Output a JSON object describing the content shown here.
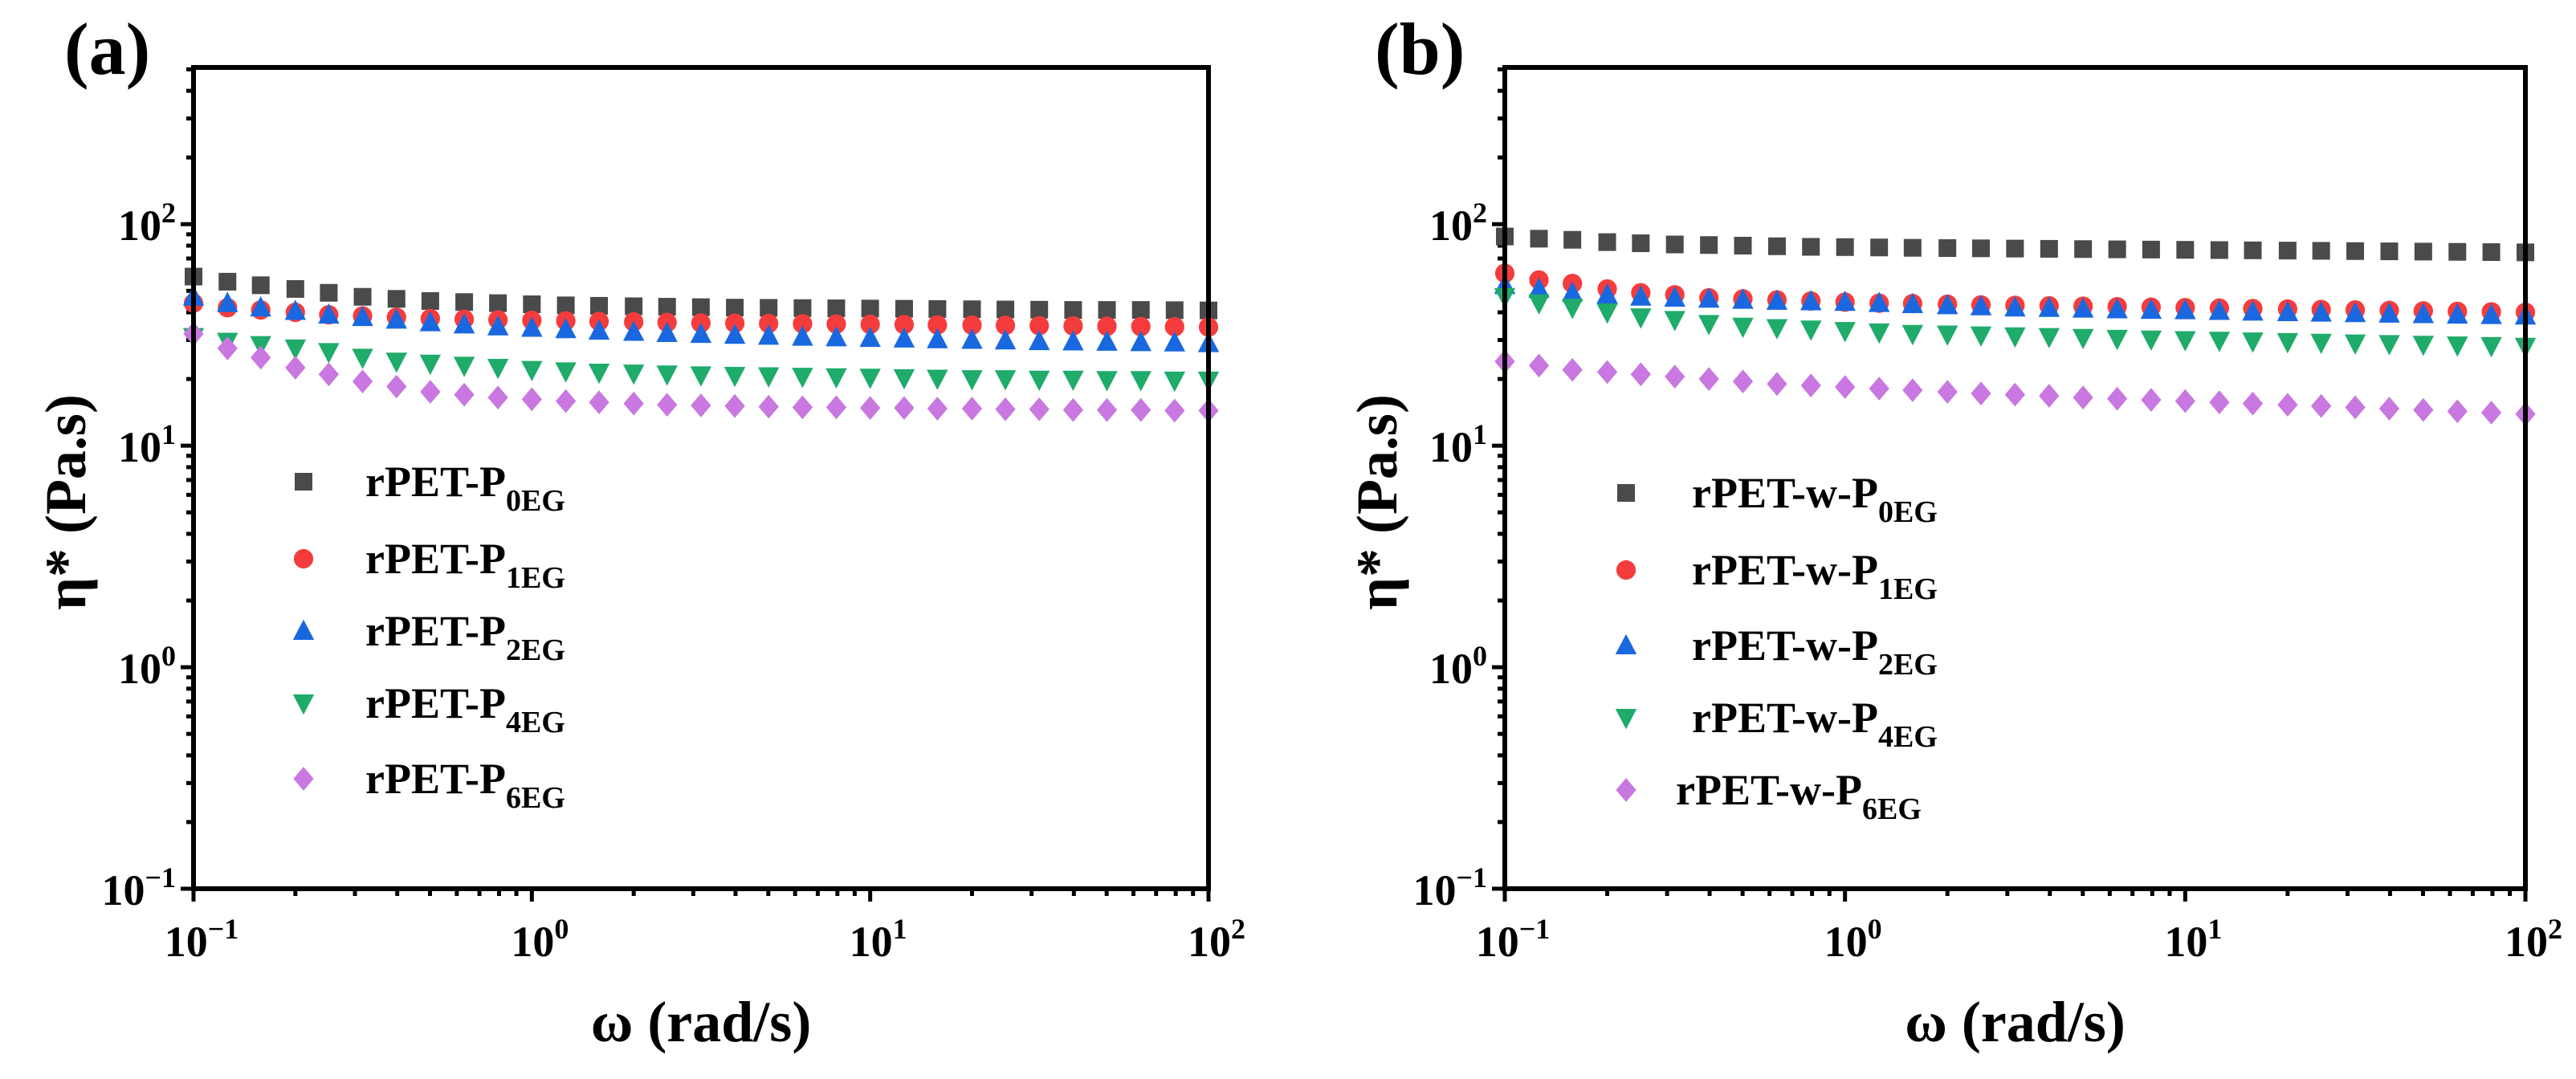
{
  "chart_data": [
    {
      "type": "scatter",
      "panel_label": "(a)",
      "xlabel": "ω (rad/s)",
      "ylabel": "η* (Pa.s)",
      "xscale": "log",
      "yscale": "log",
      "xlim": [
        0.1,
        100
      ],
      "ylim": [
        0.1,
        510
      ],
      "x_ticks": [
        {
          "value": 0.1,
          "base": "10",
          "exp": "−1"
        },
        {
          "value": 1,
          "base": "10",
          "exp": "0"
        },
        {
          "value": 10,
          "base": "10",
          "exp": "1"
        },
        {
          "value": 100,
          "base": "10",
          "exp": "2"
        }
      ],
      "y_ticks": [
        {
          "value": 0.1,
          "base": "10",
          "exp": "−1"
        },
        {
          "value": 1,
          "base": "10",
          "exp": "0"
        },
        {
          "value": 10,
          "base": "10",
          "exp": "1"
        },
        {
          "value": 100,
          "base": "10",
          "exp": "2"
        }
      ],
      "legend_placement": "center-left",
      "x": [
        0.1,
        0.126,
        0.158,
        0.2,
        0.251,
        0.316,
        0.398,
        0.501,
        0.631,
        0.794,
        1,
        1.26,
        1.58,
        2,
        2.51,
        3.16,
        3.98,
        5.01,
        6.31,
        7.94,
        10,
        12.6,
        15.8,
        20,
        25.1,
        31.6,
        39.8,
        50.1,
        63.1,
        79.4,
        100
      ],
      "series": [
        {
          "name": "rPET-P",
          "sub": "0EG",
          "marker": "square",
          "color": "#4a4a4a",
          "values": [
            58,
            55,
            53,
            51,
            49,
            47,
            46,
            45,
            44.5,
            44,
            43.5,
            43,
            42.8,
            42.6,
            42.4,
            42.2,
            42,
            41.9,
            41.8,
            41.7,
            41.6,
            41.5,
            41.4,
            41.3,
            41.2,
            41.1,
            41,
            41,
            41,
            40.9,
            40.8
          ]
        },
        {
          "name": "rPET-P",
          "sub": "1EG",
          "marker": "circle",
          "color": "#f53c3c",
          "values": [
            44,
            42,
            41,
            40,
            39,
            38.5,
            38,
            37.5,
            37.2,
            37,
            36.8,
            36.6,
            36.4,
            36.2,
            36,
            35.8,
            35.7,
            35.6,
            35.5,
            35.4,
            35.3,
            35.2,
            35.1,
            35,
            34.9,
            34.8,
            34.7,
            34.6,
            34.5,
            34.4,
            34.3
          ]
        },
        {
          "name": "rPET-P",
          "sub": "2EG",
          "marker": "triangle-up",
          "color": "#1a68e0",
          "values": [
            47,
            44,
            42,
            40.5,
            39,
            38,
            37,
            36,
            35.2,
            34.5,
            34,
            33.5,
            33,
            32.6,
            32.2,
            31.9,
            31.6,
            31.3,
            31,
            30.8,
            30.6,
            30.4,
            30.2,
            30,
            29.8,
            29.6,
            29.5,
            29.4,
            29.3,
            29.2,
            29
          ]
        },
        {
          "name": "rPET-P",
          "sub": "4EG",
          "marker": "triangle-down",
          "color": "#1fab6a",
          "values": [
            31,
            29.5,
            28.5,
            27.5,
            26.5,
            25,
            24,
            23.5,
            23,
            22.5,
            22,
            21.7,
            21.4,
            21.2,
            21,
            20.8,
            20.7,
            20.6,
            20.5,
            20.4,
            20.3,
            20.2,
            20.1,
            20,
            20,
            19.9,
            19.9,
            19.8,
            19.8,
            19.7,
            19.7
          ]
        },
        {
          "name": "rPET-P",
          "sub": "6EG",
          "marker": "diamond",
          "color": "#c878e0",
          "values": [
            32,
            27.5,
            25,
            22.5,
            21,
            19.5,
            18.5,
            17.5,
            17,
            16.5,
            16.2,
            15.9,
            15.7,
            15.5,
            15.3,
            15.2,
            15.1,
            15,
            14.9,
            14.9,
            14.8,
            14.8,
            14.7,
            14.7,
            14.6,
            14.6,
            14.5,
            14.5,
            14.5,
            14.4,
            14.4
          ]
        }
      ]
    },
    {
      "type": "scatter",
      "panel_label": "(b)",
      "xlabel": "ω (rad/s)",
      "ylabel": "η* (Pa.s)",
      "xscale": "log",
      "yscale": "log",
      "xlim": [
        0.1,
        100
      ],
      "ylim": [
        0.1,
        510
      ],
      "x_ticks": [
        {
          "value": 0.1,
          "base": "10",
          "exp": "−1"
        },
        {
          "value": 1,
          "base": "10",
          "exp": "0"
        },
        {
          "value": 10,
          "base": "10",
          "exp": "1"
        },
        {
          "value": 100,
          "base": "10",
          "exp": "2"
        }
      ],
      "y_ticks": [
        {
          "value": 0.1,
          "base": "10",
          "exp": "−1"
        },
        {
          "value": 1,
          "base": "10",
          "exp": "0"
        },
        {
          "value": 10,
          "base": "10",
          "exp": "1"
        },
        {
          "value": 100,
          "base": "10",
          "exp": "2"
        }
      ],
      "legend_placement": "center-left",
      "x": [
        0.1,
        0.126,
        0.158,
        0.2,
        0.251,
        0.316,
        0.398,
        0.501,
        0.631,
        0.794,
        1,
        1.26,
        1.58,
        2,
        2.51,
        3.16,
        3.98,
        5.01,
        6.31,
        7.94,
        10,
        12.6,
        15.8,
        20,
        25.1,
        31.6,
        39.8,
        50.1,
        63.1,
        79.4,
        100
      ],
      "series": [
        {
          "name": "rPET-w-P",
          "sub": "0EG",
          "marker": "square",
          "color": "#4a4a4a",
          "values": [
            88,
            86,
            85,
            83,
            82,
            81,
            80.5,
            80,
            79.5,
            79,
            78.8,
            78.5,
            78.2,
            78,
            77.8,
            77.6,
            77.4,
            77.2,
            77,
            76.8,
            76.6,
            76.4,
            76.2,
            76,
            75.8,
            75.6,
            75.4,
            75.2,
            75,
            74.8,
            74.6
          ]
        },
        {
          "name": "rPET-w-P",
          "sub": "1EG",
          "marker": "circle",
          "color": "#f53c3c",
          "values": [
            60,
            56,
            54,
            51,
            49,
            48,
            46.5,
            46,
            45.5,
            45,
            44.5,
            44,
            43.8,
            43.5,
            43.2,
            43,
            42.8,
            42.6,
            42.4,
            42.2,
            42,
            41.8,
            41.6,
            41.4,
            41.2,
            41,
            40.8,
            40.6,
            40.4,
            40.2,
            40
          ]
        },
        {
          "name": "rPET-w-P",
          "sub": "2EG",
          "marker": "triangle-up",
          "color": "#1a68e0",
          "values": [
            53,
            51,
            49,
            48,
            47,
            46.5,
            46,
            45.5,
            45,
            44.8,
            44.5,
            44,
            43.5,
            43,
            42.5,
            42,
            41.8,
            41.5,
            41.2,
            41,
            40.8,
            40.5,
            40.2,
            40,
            39.8,
            39.6,
            39.4,
            39.2,
            39,
            38.8,
            38.6
          ]
        },
        {
          "name": "rPET-w-P",
          "sub": "4EG",
          "marker": "triangle-down",
          "color": "#1fab6a",
          "values": [
            47,
            44,
            42,
            40,
            38,
            37,
            35.5,
            34.5,
            34,
            33.5,
            33,
            32.5,
            32,
            31.8,
            31.5,
            31.2,
            31,
            30.7,
            30.4,
            30.2,
            30,
            29.8,
            29.6,
            29.4,
            29.2,
            29,
            28.8,
            28.6,
            28.4,
            28.2,
            28
          ]
        },
        {
          "name": "rPET-w-P",
          "sub": "6EG",
          "marker": "diamond",
          "color": "#c878e0",
          "values": [
            24,
            23,
            22,
            21.5,
            21,
            20.5,
            20,
            19.5,
            19,
            18.7,
            18.4,
            18.1,
            17.8,
            17.5,
            17.2,
            17,
            16.8,
            16.5,
            16.3,
            16.1,
            15.9,
            15.7,
            15.5,
            15.3,
            15.1,
            14.9,
            14.7,
            14.5,
            14.3,
            14.1,
            13.9
          ]
        }
      ]
    }
  ]
}
